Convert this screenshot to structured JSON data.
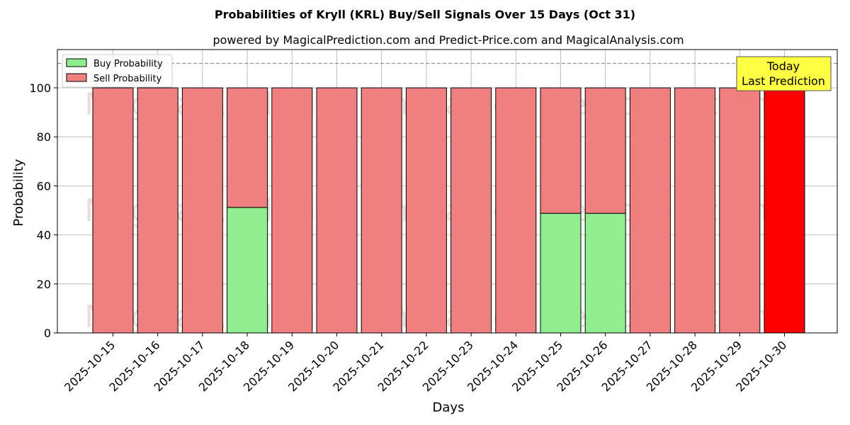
{
  "chart_data": {
    "type": "bar",
    "stacked": true,
    "title": "Probabilities of Kryll (KRL) Buy/Sell Signals Over 15 Days (Oct 31)",
    "subtitle": "powered by MagicalPrediction.com and Predict-Price.com and MagicalAnalysis.com",
    "xlabel": "Days",
    "ylabel": "Probability",
    "ylim": [
      0,
      115
    ],
    "yticks": [
      0,
      20,
      40,
      60,
      80,
      100
    ],
    "grid": true,
    "legend_position": "upper left",
    "categories": [
      "2025-10-15",
      "2025-10-16",
      "2025-10-17",
      "2025-10-18",
      "2025-10-19",
      "2025-10-20",
      "2025-10-21",
      "2025-10-22",
      "2025-10-23",
      "2025-10-24",
      "2025-10-25",
      "2025-10-26",
      "2025-10-27",
      "2025-10-28",
      "2025-10-29",
      "2025-10-30"
    ],
    "series": [
      {
        "name": "Buy Probability",
        "color": "#90ee90",
        "values": [
          0,
          0,
          0,
          51.2,
          0,
          0,
          0,
          0,
          0,
          0,
          48.8,
          48.8,
          0,
          0,
          0,
          0
        ]
      },
      {
        "name": "Sell Probability",
        "color": "#f08080",
        "values": [
          100,
          100,
          100,
          48.8,
          100,
          100,
          100,
          100,
          100,
          100,
          51.2,
          51.2,
          100,
          100,
          100,
          100
        ]
      }
    ],
    "highlight": {
      "index": 15,
      "color": "#ff0000"
    },
    "reference_line": {
      "y": 110,
      "style": "dashed",
      "color": "#808080"
    },
    "annotation": {
      "text_line1": "Today",
      "text_line2": "Last Prediction",
      "background": "#ffff44"
    },
    "watermarks": [
      "MagicalAnalysis.com",
      "MagicalPrediction.com"
    ]
  }
}
